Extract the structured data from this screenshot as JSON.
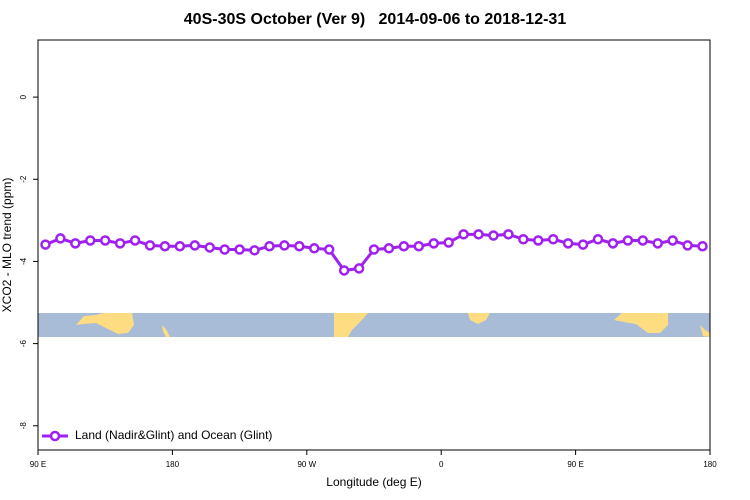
{
  "chart_data": {
    "type": "line",
    "title": "40S-30S October (Ver 9)   2014-09-06 to 2018-12-31",
    "x_label": "Longitude (deg E)",
    "y_label": "XCO2 - MLO trend (ppm)",
    "xlim": [
      90,
      540
    ],
    "ylim": [
      -8.59,
      1.39
    ],
    "xticks": [
      {
        "value": 90,
        "label": "90 E"
      },
      180,
      {
        "value": 270,
        "label": "90 W"
      },
      {
        "value": 360,
        "label": "0"
      },
      {
        "value": 450,
        "label": "90 E"
      },
      {
        "value": 540,
        "label": "180"
      }
    ],
    "yticks": [
      0,
      -2,
      -4,
      -6,
      -8
    ],
    "legend": "bottom-left",
    "x": [
      95,
      105,
      115,
      125,
      135,
      145,
      155,
      165,
      175,
      185,
      195,
      205,
      215,
      225,
      235,
      245,
      255,
      265,
      275,
      285,
      295,
      305,
      315,
      325,
      335,
      345,
      355,
      365,
      375,
      385,
      395,
      405,
      415,
      425,
      435,
      445,
      455,
      465,
      475,
      485,
      495,
      505,
      515,
      525,
      535
    ],
    "series": [
      {
        "name": "Land (Nadir&Glint) and Ocean (Glint)",
        "color": "#a020f0",
        "values": [
          -3.59,
          -3.44,
          -3.56,
          -3.49,
          -3.49,
          -3.56,
          -3.49,
          -3.61,
          -3.63,
          -3.63,
          -3.61,
          -3.66,
          -3.71,
          -3.71,
          -3.73,
          -3.63,
          -3.61,
          -3.63,
          -3.68,
          -3.71,
          -4.22,
          -4.17,
          -3.71,
          -3.68,
          -3.63,
          -3.63,
          -3.56,
          -3.54,
          -3.34,
          -3.34,
          -3.37,
          -3.34,
          -3.46,
          -3.49,
          -3.46,
          -3.56,
          -3.59,
          -3.46,
          -3.56,
          -3.49,
          -3.49,
          -3.56,
          -3.49,
          -3.61,
          -3.63
        ]
      }
    ]
  }
}
